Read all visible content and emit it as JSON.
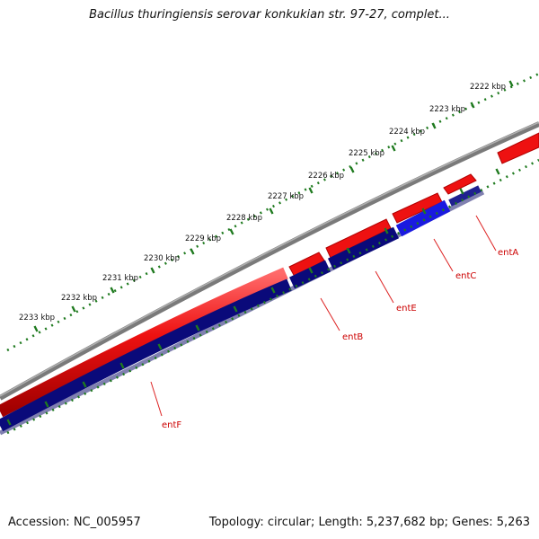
{
  "title": "Bacillus thuringiensis serovar konkukian str. 97-27, complet...",
  "footer": {
    "accession": "Accession: NC_005957",
    "topology": "Topology: circular; Length: 5,237,682 bp; Genes: 5,263"
  },
  "ruler": {
    "unit": "kbp",
    "ticks": [
      {
        "kbp": 2222,
        "label": "2222 kbp"
      },
      {
        "kbp": 2223,
        "label": "2223 kbp"
      },
      {
        "kbp": 2224,
        "label": "2224 kbp"
      },
      {
        "kbp": 2225,
        "label": "2225 kbp"
      },
      {
        "kbp": 2226,
        "label": "2226 kbp"
      },
      {
        "kbp": 2227,
        "label": "2227 kbp"
      },
      {
        "kbp": 2228,
        "label": "2228 kbp"
      },
      {
        "kbp": 2229,
        "label": "2229 kbp"
      },
      {
        "kbp": 2230,
        "label": "2230 kbp"
      },
      {
        "kbp": 2231,
        "label": "2231 kbp"
      },
      {
        "kbp": 2232,
        "label": "2232 kbp"
      },
      {
        "kbp": 2233,
        "label": "2233 kbp"
      }
    ]
  },
  "genes": [
    {
      "name": "entA",
      "label": "entA"
    },
    {
      "name": "entC",
      "label": "entC"
    },
    {
      "name": "entE",
      "label": "entE"
    },
    {
      "name": "entB",
      "label": "entB"
    },
    {
      "name": "entF",
      "label": "entF"
    }
  ],
  "colors": {
    "backbone": "#8a8a8a",
    "forward_feature": "#ee1111",
    "gene_track": "#0a0a7a",
    "selected_gene": "#1a1ae0",
    "tick": "#1f7a1f",
    "label": "#cc0000",
    "leader": "#dd2222"
  }
}
